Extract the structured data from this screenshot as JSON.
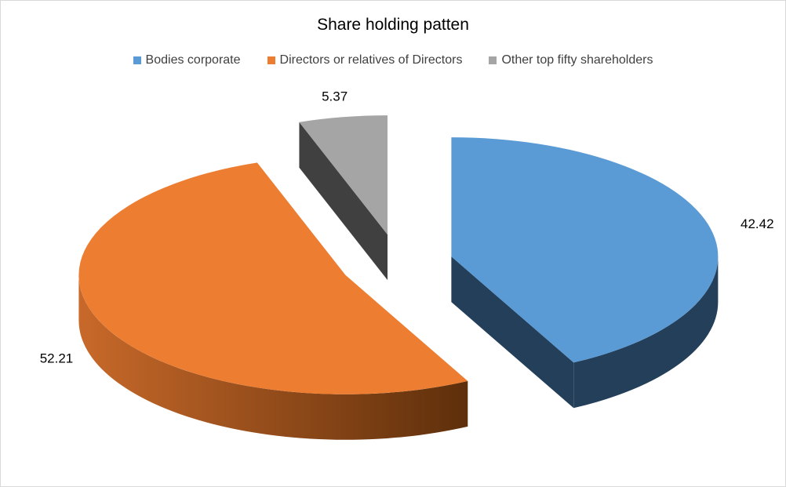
{
  "chart_data": {
    "type": "pie",
    "title": "Share holding patten",
    "categories": [
      "Bodies corporate",
      "Directors or relatives of Directors",
      "Other top fifty shareholders"
    ],
    "values": [
      42.42,
      52.21,
      5.37
    ],
    "data_labels": [
      "42.42",
      "52.21",
      "5.37"
    ],
    "colors": [
      "#5b9bd5",
      "#ed7d31",
      "#a5a5a5"
    ],
    "side_colors": [
      "#243f5a",
      "#b5621f",
      "#404040"
    ],
    "legend_position": "top",
    "style": "3d exploded pie"
  }
}
